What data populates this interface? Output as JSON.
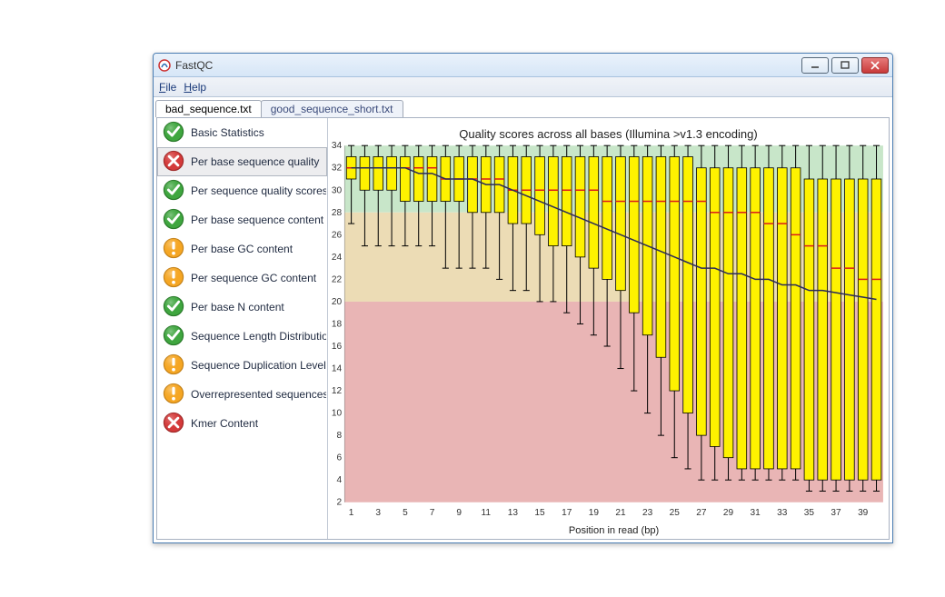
{
  "window": {
    "title": "FastQC"
  },
  "menu": {
    "items": [
      {
        "label": "File",
        "accel_index": 0
      },
      {
        "label": "Help",
        "accel_index": 0
      }
    ]
  },
  "tabs": {
    "items": [
      "bad_sequence.txt",
      "good_sequence_short.txt"
    ],
    "active": 0
  },
  "sidebar": {
    "selected": 1,
    "items": [
      {
        "label": "Basic Statistics",
        "status": "pass"
      },
      {
        "label": "Per base sequence quality",
        "status": "fail"
      },
      {
        "label": "Per sequence quality scores",
        "status": "pass"
      },
      {
        "label": "Per base sequence content",
        "status": "pass"
      },
      {
        "label": "Per base GC content",
        "status": "warn"
      },
      {
        "label": "Per sequence GC content",
        "status": "warn"
      },
      {
        "label": "Per base N content",
        "status": "pass"
      },
      {
        "label": "Sequence Length Distribution",
        "status": "pass"
      },
      {
        "label": "Sequence Duplication Levels",
        "status": "warn"
      },
      {
        "label": "Overrepresented sequences",
        "status": "warn"
      },
      {
        "label": "Kmer Content",
        "status": "fail"
      }
    ]
  },
  "chart": {
    "type": "boxplot",
    "title": "Quality scores across all bases (Illumina >v1.3 encoding)",
    "xlabel": "Position in read (bp)",
    "positions": [
      1,
      2,
      3,
      4,
      5,
      6,
      7,
      8,
      9,
      10,
      11,
      12,
      13,
      14,
      15,
      16,
      17,
      18,
      19,
      20,
      21,
      22,
      23,
      24,
      25,
      26,
      27,
      28,
      29,
      30,
      31,
      32,
      33,
      34,
      35,
      36,
      37,
      38,
      39,
      40
    ],
    "yticks": [
      2,
      4,
      6,
      8,
      10,
      12,
      14,
      16,
      18,
      20,
      22,
      24,
      26,
      28,
      30,
      32,
      34
    ],
    "ylim": [
      2,
      34
    ],
    "bands": {
      "good_color": "#c8e6c9",
      "good_range": [
        28,
        34
      ],
      "warn_color": "#ecdcb5",
      "warn_range": [
        20,
        28
      ],
      "bad_color": "#e9b5b5",
      "bad_range": [
        2,
        20
      ]
    },
    "box_fill": "#fef200",
    "box_stroke": "#000000",
    "median_color": "#d91c1c",
    "whisker_color": "#000000",
    "mean_line_color": "#2a2a5a",
    "grid_color": "#d4d4d4",
    "background": "#ffffff",
    "axis_fontsize": 10,
    "data": [
      {
        "min": 27,
        "q1": 31,
        "med": 32,
        "q3": 33,
        "max": 34
      },
      {
        "min": 25,
        "q1": 30,
        "med": 32,
        "q3": 33,
        "max": 34
      },
      {
        "min": 25,
        "q1": 30,
        "med": 32,
        "q3": 33,
        "max": 34
      },
      {
        "min": 25,
        "q1": 30,
        "med": 32,
        "q3": 33,
        "max": 34
      },
      {
        "min": 25,
        "q1": 29,
        "med": 32,
        "q3": 33,
        "max": 34
      },
      {
        "min": 25,
        "q1": 29,
        "med": 32,
        "q3": 33,
        "max": 34
      },
      {
        "min": 25,
        "q1": 29,
        "med": 32,
        "q3": 33,
        "max": 34
      },
      {
        "min": 23,
        "q1": 29,
        "med": 31,
        "q3": 33,
        "max": 34
      },
      {
        "min": 23,
        "q1": 29,
        "med": 31,
        "q3": 33,
        "max": 34
      },
      {
        "min": 23,
        "q1": 28,
        "med": 31,
        "q3": 33,
        "max": 34
      },
      {
        "min": 23,
        "q1": 28,
        "med": 31,
        "q3": 33,
        "max": 34
      },
      {
        "min": 22,
        "q1": 28,
        "med": 31,
        "q3": 33,
        "max": 34
      },
      {
        "min": 21,
        "q1": 27,
        "med": 30,
        "q3": 33,
        "max": 34
      },
      {
        "min": 21,
        "q1": 27,
        "med": 30,
        "q3": 33,
        "max": 34
      },
      {
        "min": 20,
        "q1": 26,
        "med": 30,
        "q3": 33,
        "max": 34
      },
      {
        "min": 20,
        "q1": 25,
        "med": 30,
        "q3": 33,
        "max": 34
      },
      {
        "min": 19,
        "q1": 25,
        "med": 30,
        "q3": 33,
        "max": 34
      },
      {
        "min": 18,
        "q1": 24,
        "med": 30,
        "q3": 33,
        "max": 34
      },
      {
        "min": 17,
        "q1": 23,
        "med": 30,
        "q3": 33,
        "max": 34
      },
      {
        "min": 16,
        "q1": 22,
        "med": 29,
        "q3": 33,
        "max": 34
      },
      {
        "min": 14,
        "q1": 21,
        "med": 29,
        "q3": 33,
        "max": 34
      },
      {
        "min": 12,
        "q1": 19,
        "med": 29,
        "q3": 33,
        "max": 34
      },
      {
        "min": 10,
        "q1": 17,
        "med": 29,
        "q3": 33,
        "max": 34
      },
      {
        "min": 8,
        "q1": 15,
        "med": 29,
        "q3": 33,
        "max": 34
      },
      {
        "min": 6,
        "q1": 12,
        "med": 29,
        "q3": 33,
        "max": 34
      },
      {
        "min": 5,
        "q1": 10,
        "med": 29,
        "q3": 33,
        "max": 34
      },
      {
        "min": 4,
        "q1": 8,
        "med": 29,
        "q3": 32,
        "max": 34
      },
      {
        "min": 4,
        "q1": 7,
        "med": 28,
        "q3": 32,
        "max": 34
      },
      {
        "min": 4,
        "q1": 6,
        "med": 28,
        "q3": 32,
        "max": 34
      },
      {
        "min": 4,
        "q1": 5,
        "med": 28,
        "q3": 32,
        "max": 34
      },
      {
        "min": 4,
        "q1": 5,
        "med": 28,
        "q3": 32,
        "max": 34
      },
      {
        "min": 4,
        "q1": 5,
        "med": 27,
        "q3": 32,
        "max": 34
      },
      {
        "min": 4,
        "q1": 5,
        "med": 27,
        "q3": 32,
        "max": 34
      },
      {
        "min": 4,
        "q1": 5,
        "med": 26,
        "q3": 32,
        "max": 34
      },
      {
        "min": 3,
        "q1": 4,
        "med": 25,
        "q3": 31,
        "max": 34
      },
      {
        "min": 3,
        "q1": 4,
        "med": 25,
        "q3": 31,
        "max": 34
      },
      {
        "min": 3,
        "q1": 4,
        "med": 23,
        "q3": 31,
        "max": 34
      },
      {
        "min": 3,
        "q1": 4,
        "med": 23,
        "q3": 31,
        "max": 34
      },
      {
        "min": 3,
        "q1": 4,
        "med": 22,
        "q3": 31,
        "max": 34
      },
      {
        "min": 3,
        "q1": 4,
        "med": 22,
        "q3": 31,
        "max": 34
      }
    ],
    "mean_line": [
      32,
      32,
      32,
      32,
      32,
      31.5,
      31.5,
      31,
      31,
      31,
      30.5,
      30.5,
      30,
      29.5,
      29,
      28.5,
      28,
      27.5,
      27,
      26.5,
      26,
      25.5,
      25,
      24.5,
      24,
      23.5,
      23,
      23,
      22.5,
      22.5,
      22,
      22,
      21.5,
      21.5,
      21,
      21,
      20.8,
      20.6,
      20.4,
      20.2
    ]
  }
}
